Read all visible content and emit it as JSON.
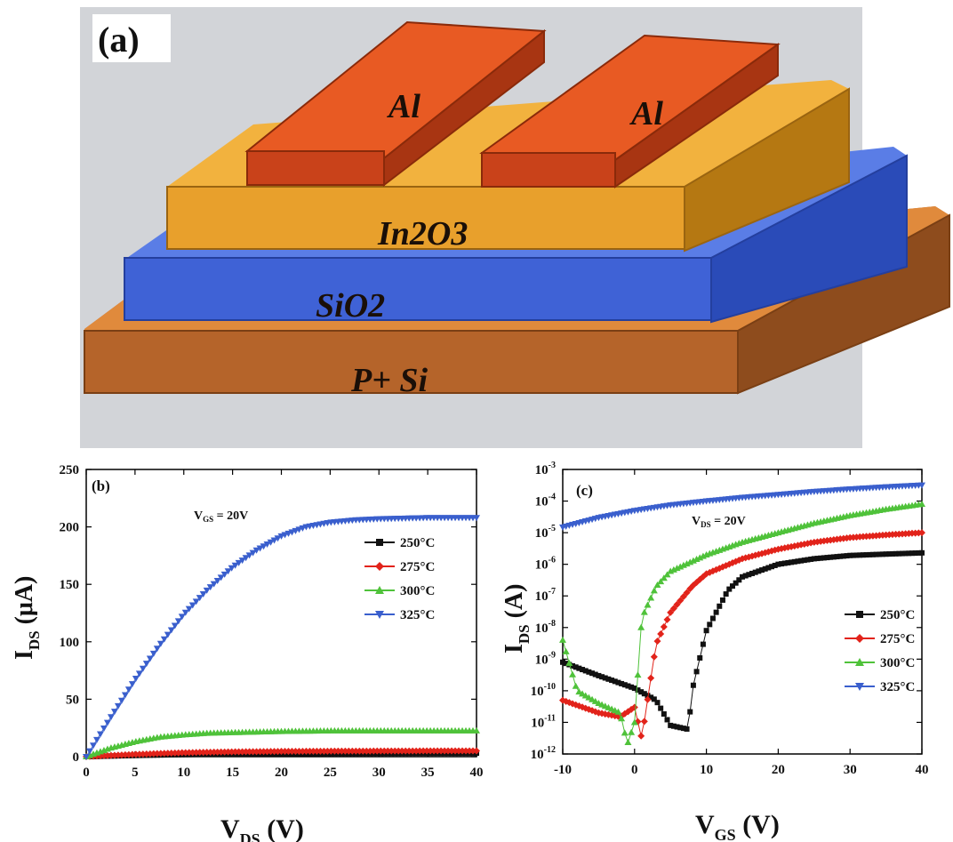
{
  "figure": {
    "panel_a": {
      "tag": "(a)",
      "layers": {
        "electrode": "Al",
        "channel": "In2O3",
        "dielectric": "SiO2",
        "substrate": "P+ Si"
      }
    }
  },
  "chart_data": [
    {
      "type": "scatter",
      "panel": "(b)",
      "annotation": "V_GS = 20V",
      "xlabel": "V_DS (V)",
      "ylabel": "I_DS (μA)",
      "xlim": [
        0,
        40
      ],
      "ylim": [
        0,
        250
      ],
      "xticks": [
        0,
        5,
        10,
        15,
        20,
        25,
        30,
        35,
        40
      ],
      "yticks": [
        0,
        50,
        100,
        150,
        200,
        250
      ],
      "legend_position": "right",
      "series": [
        {
          "name": "250°C",
          "color": "#111111",
          "marker": "square",
          "x": [
            0,
            5,
            10,
            15,
            20,
            25,
            30,
            35,
            40
          ],
          "y": [
            0,
            1.0,
            1.8,
            2.3,
            2.6,
            2.8,
            2.9,
            3.0,
            3.0
          ]
        },
        {
          "name": "275°C",
          "color": "#e2231a",
          "marker": "diamond",
          "x": [
            0,
            5,
            10,
            15,
            20,
            25,
            30,
            35,
            40
          ],
          "y": [
            0,
            2.0,
            3.5,
            4.2,
            4.6,
            4.8,
            4.9,
            5.0,
            5.0
          ]
        },
        {
          "name": "300°C",
          "color": "#4fc23a",
          "marker": "triangle-up",
          "x": [
            0,
            2.5,
            5,
            7.5,
            10,
            12.5,
            15,
            20,
            25,
            30,
            35,
            40
          ],
          "y": [
            0,
            7.5,
            13,
            17,
            19,
            20.5,
            21,
            22,
            22.5,
            22.5,
            22.5,
            22.5
          ]
        },
        {
          "name": "325°C",
          "color": "#3a5fcd",
          "marker": "triangle-down",
          "x": [
            0,
            2.5,
            5,
            7.5,
            10,
            12.5,
            15,
            17.5,
            20,
            22.5,
            25,
            27.5,
            30,
            35,
            40
          ],
          "y": [
            0,
            34,
            67,
            97,
            124,
            146,
            165,
            180,
            192,
            200,
            204,
            206,
            207,
            208,
            208
          ]
        }
      ]
    },
    {
      "type": "scatter",
      "panel": "(c)",
      "annotation": "V_DS = 20V",
      "xlabel": "V_GS (V)",
      "ylabel": "I_DS (A)",
      "yscale": "log",
      "xlim": [
        -10,
        40
      ],
      "ylim": [
        1e-12,
        0.001
      ],
      "xticks": [
        -10,
        0,
        10,
        20,
        30,
        40
      ],
      "ytick_exponents": [
        -12,
        -11,
        -10,
        -9,
        -8,
        -7,
        -6,
        -5,
        -4,
        -3
      ],
      "legend_position": "lower right",
      "series": [
        {
          "name": "250°C",
          "color": "#111111",
          "marker": "square",
          "x": [
            -10,
            -5,
            0,
            3,
            5,
            7.5,
            8,
            10,
            13,
            15,
            20,
            25,
            30,
            35,
            40
          ],
          "y": [
            8e-10,
            3e-10,
            1.2e-10,
            5e-11,
            8e-12,
            6e-12,
            1e-10,
            8e-09,
            1.5e-07,
            4e-07,
            1e-06,
            1.5e-06,
            1.9e-06,
            2.1e-06,
            2.3e-06
          ]
        },
        {
          "name": "275°C",
          "color": "#e2231a",
          "marker": "diamond",
          "x": [
            -10,
            -5,
            -2,
            0,
            1,
            2,
            3,
            5,
            8,
            10,
            15,
            20,
            25,
            30,
            35,
            40
          ],
          "y": [
            5e-11,
            2e-11,
            1.5e-11,
            3e-11,
            3e-12,
            1e-10,
            3e-09,
            3e-08,
            2e-07,
            5e-07,
            1.5e-06,
            3e-06,
            5e-06,
            7e-06,
            8.5e-06,
            1e-05
          ]
        },
        {
          "name": "300°C",
          "color": "#4fc23a",
          "marker": "triangle-up",
          "x": [
            -10,
            -8,
            -5,
            -2,
            -1,
            0,
            1,
            3,
            5,
            10,
            15,
            20,
            25,
            30,
            35,
            40
          ],
          "y": [
            4e-09,
            1e-10,
            4e-11,
            2e-11,
            2e-12,
            1e-11,
            2e-08,
            2e-07,
            6e-07,
            2e-06,
            5e-06,
            1e-05,
            2e-05,
            3.5e-05,
            5.5e-05,
            8e-05
          ]
        },
        {
          "name": "325°C",
          "color": "#3a5fcd",
          "marker": "triangle-down",
          "x": [
            -10,
            -5,
            0,
            5,
            10,
            15,
            20,
            25,
            30,
            35,
            40
          ],
          "y": [
            1.5e-05,
            3e-05,
            5e-05,
            7.5e-05,
            0.0001,
            0.00013,
            0.00016,
            0.0002,
            0.00024,
            0.00028,
            0.00032
          ]
        }
      ]
    }
  ]
}
